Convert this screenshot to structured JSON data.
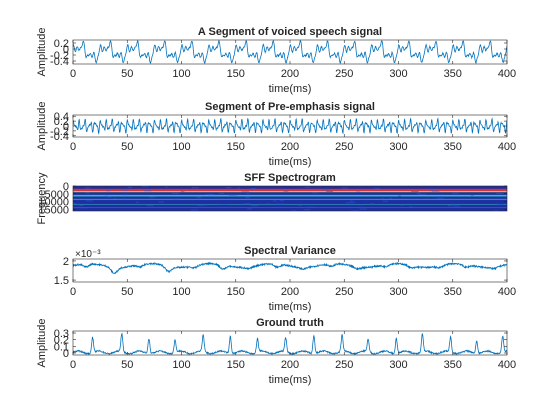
{
  "colors": {
    "line": "#0072BD",
    "axis": "#262626",
    "spec_bg": "#1f2fa0",
    "spec_band": "#31d3c6",
    "spec_hot": "#f8e81b",
    "spec_red": "#e03a2a"
  },
  "chart_data": [
    {
      "type": "line",
      "title": "A Segment of voiced speech signal",
      "xlabel": "time(ms)",
      "ylabel": "Amplitude",
      "xlim": [
        0,
        400
      ],
      "ylim": [
        -0.5,
        0.3
      ],
      "xticks": [
        0,
        50,
        100,
        150,
        200,
        250,
        300,
        350,
        400
      ],
      "yticks": [
        0.2,
        0,
        -0.2,
        -0.4
      ],
      "ytick_labels": [
        "0.2",
        "0",
        "-0.2",
        "-0.4"
      ],
      "period_ms": 25,
      "series": [
        {
          "amplitude": 0.35,
          "waveform": "voiced-periodic"
        }
      ]
    },
    {
      "type": "line",
      "title": "Segment of Pre-emphasis signal",
      "xlabel": "time(ms)",
      "ylabel": "Amplitude",
      "xlim": [
        0,
        400
      ],
      "ylim": [
        -0.45,
        0.45
      ],
      "xticks": [
        0,
        50,
        100,
        150,
        200,
        250,
        300,
        350,
        400
      ],
      "yticks": [
        0.4,
        0.2,
        0,
        -0.2,
        -0.4
      ],
      "ytick_labels": [
        "0.4",
        "0.2",
        "0",
        "-0.2",
        "-0.4"
      ],
      "period_ms": 25,
      "series": [
        {
          "amplitude": 0.35,
          "waveform": "pre-emphasized"
        }
      ]
    },
    {
      "type": "heatmap",
      "title": "SFF Spectrogram",
      "xlabel": "",
      "ylabel": "Frequency",
      "xlim": [
        0,
        400
      ],
      "ylim": [
        0,
        16000
      ],
      "yticks": [
        0,
        5000,
        10000,
        15000
      ],
      "ytick_labels": [
        "0",
        "5000",
        "10000",
        "15000"
      ],
      "colormap": "jet"
    },
    {
      "type": "line",
      "title": "Spectral Variance",
      "xlabel": "time(ms)",
      "ylabel": "",
      "exponent_label": "×10⁻³",
      "xlim": [
        0,
        400
      ],
      "ylim": [
        1.45,
        2.05
      ],
      "xticks": [
        0,
        50,
        100,
        150,
        200,
        250,
        300,
        350,
        400
      ],
      "yticks": [
        2,
        1.5
      ],
      "ytick_labels": [
        "2",
        "1.5"
      ],
      "series": [
        {
          "baseline": 1.88,
          "dip_depth": 0.22
        }
      ]
    },
    {
      "type": "line",
      "title": "Ground truth",
      "xlabel": "time(ms)",
      "ylabel": "Amplitude",
      "xlim": [
        0,
        400
      ],
      "ylim": [
        -0.03,
        0.33
      ],
      "xticks": [
        0,
        50,
        100,
        150,
        200,
        250,
        300,
        350,
        400
      ],
      "yticks": [
        0.3,
        0.2,
        0.1,
        0
      ],
      "ytick_labels": [
        "0.3",
        "0.2",
        "0.1",
        "0"
      ],
      "series": [
        {
          "peaks_ms": [
            18,
            45,
            70,
            94,
            120,
            145,
            170,
            196,
            222,
            248,
            272,
            298,
            322,
            348,
            372,
            396
          ],
          "peak_height": 0.27
        }
      ]
    }
  ]
}
